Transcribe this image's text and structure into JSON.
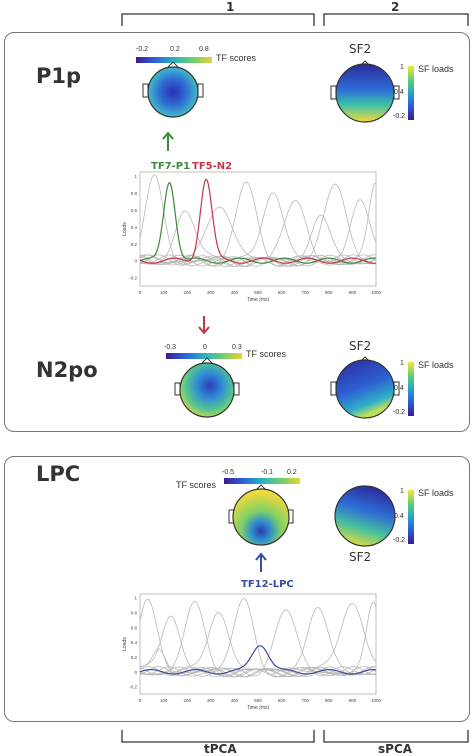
{
  "top_brackets": {
    "left_label": "1",
    "right_label": "2"
  },
  "bottom_brackets": {
    "left_label": "tPCA",
    "right_label": "sPCA"
  },
  "panel1": {
    "p1p_title": "P1p",
    "n2po_title": "N2po",
    "sf2_top_label": "SF2",
    "sf2_bottom_label": "SF2",
    "tf_scores_top": {
      "label": "TF scores",
      "ticks": [
        "-0.2",
        "0.2",
        "0.8"
      ]
    },
    "tf_scores_bottom": {
      "label": "TF scores",
      "ticks": [
        "-0.3",
        "0",
        "0.3"
      ]
    },
    "sf_loads_top": {
      "label": "SF loads",
      "ticks": [
        "1",
        "0.4",
        "-0.2"
      ]
    },
    "sf_loads_bottom": {
      "label": "SF loads",
      "ticks": [
        "1",
        "0.4",
        "-0.2"
      ]
    },
    "tf7_label": "TF7-P1",
    "tf5_label": "TF5-N2",
    "chart_ylabel": "Loads",
    "chart_xlabel": "Time (ms)",
    "y_ticks": [
      "1",
      "0.8",
      "0.6",
      "0.4",
      "0.2",
      "0",
      "-0.2"
    ],
    "x_ticks": [
      "0",
      "100",
      "200",
      "300",
      "400",
      "500",
      "600",
      "700",
      "800",
      "900",
      "1000"
    ]
  },
  "panel2": {
    "lpc_title": "LPC",
    "sf2_label": "SF2",
    "tf_scores": {
      "label": "TF scores",
      "ticks": [
        "-0.5",
        "-0.1",
        "0.2"
      ]
    },
    "sf_loads": {
      "label": "SF loads",
      "ticks": [
        "1",
        "0.4",
        "-0.2"
      ]
    },
    "tf12_label": "TF12-LPC",
    "chart_ylabel": "Loads",
    "chart_xlabel": "Time (ms)",
    "y_ticks": [
      "1",
      "0.8",
      "0.6",
      "0.4",
      "0.2",
      "0",
      "-0.2"
    ],
    "x_ticks": [
      "0",
      "100",
      "200",
      "300",
      "400",
      "500",
      "600",
      "700",
      "800",
      "900",
      "1000"
    ]
  },
  "colors": {
    "green": "#3a8a3a",
    "red": "#c0394b",
    "blue": "#3b4a9e",
    "gray_curve": "#b8b8b8",
    "border": "#777777"
  },
  "chart_data": [
    {
      "type": "line",
      "xlabel": "Time (ms)",
      "ylabel": "Loads",
      "xlim": [
        0,
        1000
      ],
      "ylim": [
        -0.3,
        1.05
      ],
      "series": [
        {
          "name": "TF7-P1",
          "color": "#3a8a3a",
          "peak_x": 125,
          "peak_y": 0.95
        },
        {
          "name": "TF5-N2",
          "color": "#c0394b",
          "peak_x": 280,
          "peak_y": 0.97
        }
      ]
    },
    {
      "type": "line",
      "xlabel": "Time (ms)",
      "ylabel": "Loads",
      "xlim": [
        0,
        1000
      ],
      "ylim": [
        -0.3,
        1.05
      ],
      "series": [
        {
          "name": "TF12-LPC",
          "color": "#3b4a9e",
          "peak_x": 510,
          "peak_y": 0.38
        }
      ]
    }
  ]
}
